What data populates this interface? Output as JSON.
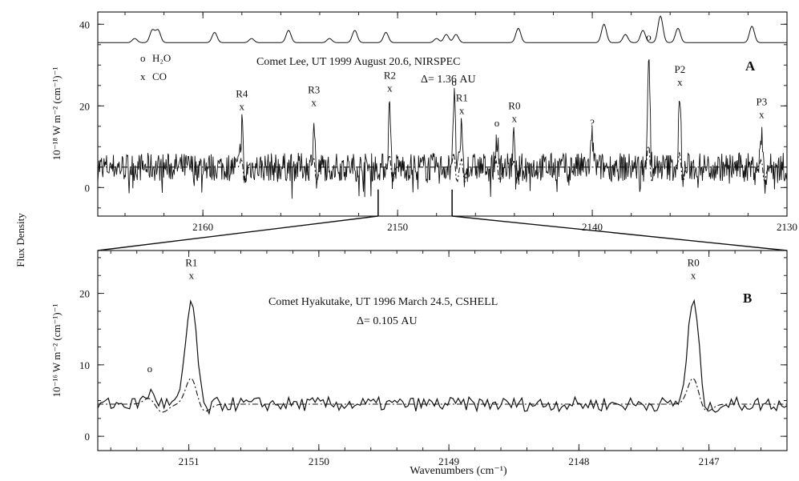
{
  "figure": {
    "shared_ylabel": "Flux Density",
    "xlabel": "Wavenumbers (cm⁻¹)"
  },
  "legend": {
    "h2o_marker": "o",
    "h2o_label": "H₂O",
    "co_marker": "x",
    "co_label": "CO"
  },
  "chart_data": [
    {
      "type": "line",
      "panel_label": "A",
      "title": "Comet Lee, UT 1999 August 20.6, NIRSPEC",
      "subtitle": "Δ= 1.36 AU",
      "ylabel": "10⁻¹⁸ W m⁻² (cm⁻¹)⁻¹",
      "xlim": [
        2165.4,
        2130
      ],
      "ylim": [
        -7,
        43
      ],
      "x_ticks": [
        2160,
        2150,
        2140,
        2130
      ],
      "y_ticks": [
        0,
        20,
        40
      ],
      "continuum": 5,
      "noise_amplitude": 3.5,
      "atmospheric_model": {
        "baseline": 35.5,
        "lines": [
          {
            "x": 2163.5,
            "h": 1.0
          },
          {
            "x": 2162.6,
            "h": 3.0
          },
          {
            "x": 2162.3,
            "h": 3.0
          },
          {
            "x": 2159.4,
            "h": 2.5
          },
          {
            "x": 2157.5,
            "h": 1.0
          },
          {
            "x": 2155.6,
            "h": 3.0
          },
          {
            "x": 2153.5,
            "h": 1.0
          },
          {
            "x": 2152.2,
            "h": 3.0
          },
          {
            "x": 2150.6,
            "h": 2.5
          },
          {
            "x": 2148.0,
            "h": 1.0
          },
          {
            "x": 2147.5,
            "h": 2.0
          },
          {
            "x": 2147.0,
            "h": 2.0
          },
          {
            "x": 2143.8,
            "h": 3.5
          },
          {
            "x": 2139.4,
            "h": 4.5
          },
          {
            "x": 2138.3,
            "h": 2.0
          },
          {
            "x": 2137.4,
            "h": 3.0
          },
          {
            "x": 2136.5,
            "h": 6.5
          },
          {
            "x": 2135.6,
            "h": 3.5
          },
          {
            "x": 2131.8,
            "h": 4.0
          }
        ]
      },
      "emission_features": [
        {
          "x": 2158.0,
          "y": 19.0,
          "marker": "x",
          "label": "R4"
        },
        {
          "x": 2154.3,
          "y": 20.0,
          "marker": "x",
          "label": "R3"
        },
        {
          "x": 2150.4,
          "y": 23.5,
          "marker": "x",
          "label": "R2"
        },
        {
          "x": 2147.1,
          "y": 25.0,
          "marker": "o",
          "label": ""
        },
        {
          "x": 2146.7,
          "y": 18.0,
          "marker": "x",
          "label": "R1"
        },
        {
          "x": 2144.9,
          "y": 15.0,
          "marker": "o",
          "label": ""
        },
        {
          "x": 2144.0,
          "y": 16.0,
          "marker": "x",
          "label": "R0"
        },
        {
          "x": 2140.0,
          "y": 15.0,
          "marker": "?",
          "label": ""
        },
        {
          "x": 2137.1,
          "y": 36.0,
          "marker": "o",
          "label": ""
        },
        {
          "x": 2135.5,
          "y": 25.0,
          "marker": "x",
          "label": "P2"
        },
        {
          "x": 2131.3,
          "y": 17.0,
          "marker": "x",
          "label": "P3"
        }
      ],
      "zoom_range": [
        2151.0,
        2147.2
      ]
    },
    {
      "type": "line",
      "panel_label": "B",
      "title": "Comet Hyakutake, UT 1996 March 24.5, CSHELL",
      "subtitle": "Δ= 0.105 AU",
      "ylabel": "10⁻¹⁶ W m⁻² (cm⁻¹)⁻¹",
      "xlim": [
        2151.7,
        2146.4
      ],
      "ylim": [
        -2,
        26
      ],
      "x_ticks": [
        2151,
        2150,
        2149,
        2148,
        2147
      ],
      "y_ticks": [
        0,
        10,
        20
      ],
      "continuum": 4.5,
      "noise_amplitude": 1.0,
      "emission_features": [
        {
          "x": 2151.3,
          "y": 9.0,
          "marker": "o",
          "label": ""
        },
        {
          "x": 2150.98,
          "y": 22.0,
          "marker": "x",
          "label": "R1"
        },
        {
          "x": 2147.12,
          "y": 22.0,
          "marker": "x",
          "label": "R0"
        }
      ]
    }
  ]
}
